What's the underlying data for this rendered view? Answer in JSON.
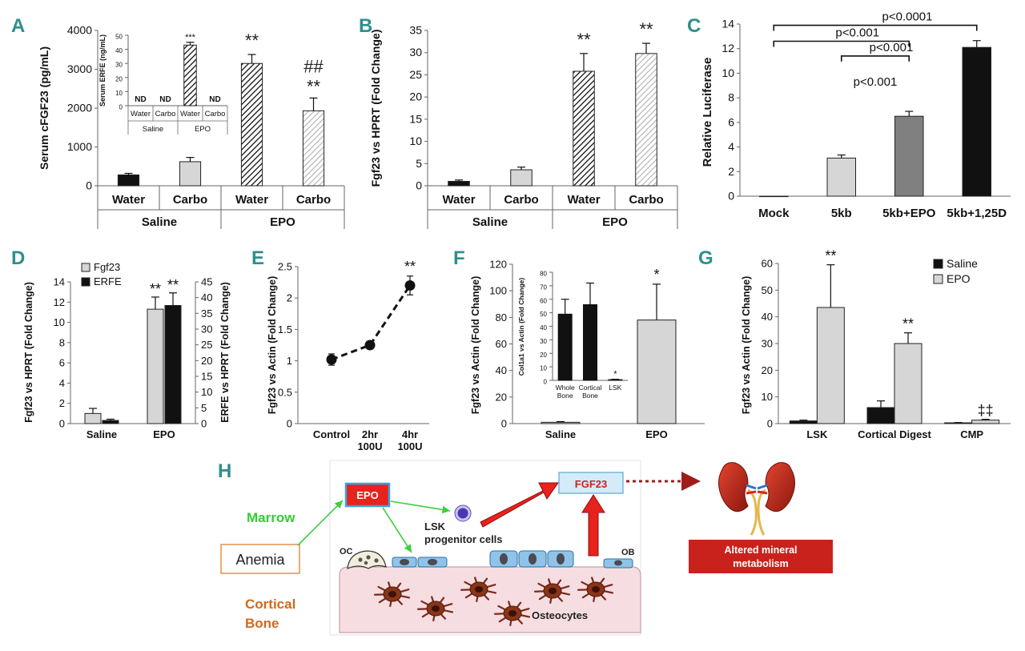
{
  "colors": {
    "letter": "#2e8f8c",
    "black": "#111111",
    "light": "#d6d6d6",
    "mid": "#808080",
    "line": "#666666",
    "sig": "#222222"
  },
  "chart_data": [
    {
      "id": "A",
      "letter": "A",
      "type": "bar",
      "title": "",
      "xlabel": "",
      "ylabel": "Serum cFGF23 (pg/mL)",
      "ylim": [
        0,
        4000
      ],
      "ticks": [
        0,
        1000,
        2000,
        3000,
        4000
      ],
      "categories": [
        "Water",
        "Carbo",
        "Water",
        "Carbo"
      ],
      "groups": [
        {
          "label": "Saline",
          "span": [
            0,
            1
          ]
        },
        {
          "label": "EPO",
          "span": [
            2,
            3
          ]
        }
      ],
      "values": [
        280,
        620,
        3150,
        1930
      ],
      "errors": [
        40,
        110,
        230,
        330
      ],
      "fills": [
        "black",
        "light",
        "hatch-dark",
        "hatch-light"
      ],
      "sig": [
        "",
        "",
        "**",
        "##\n**"
      ],
      "inset": {
        "ylabel": "Serum ERFE (ng/mL)",
        "ylim": [
          0,
          50
        ],
        "ticks": [
          0,
          10,
          20,
          30,
          40,
          50
        ],
        "categories": [
          "Water",
          "Carbo",
          "Water",
          "Carbo"
        ],
        "groups": [
          {
            "label": "Saline",
            "span": [
              0,
              1
            ]
          },
          {
            "label": "EPO",
            "span": [
              2,
              3
            ]
          }
        ],
        "values": [
          null,
          null,
          43,
          null
        ],
        "errors": [
          0,
          0,
          2,
          0
        ],
        "labels": [
          "ND",
          "ND",
          "***",
          "ND"
        ]
      }
    },
    {
      "id": "B",
      "letter": "B",
      "type": "bar",
      "title": "",
      "xlabel": "",
      "ylabel": "Fgf23 vs HPRT (Fold Change)",
      "ylim": [
        0,
        35
      ],
      "ticks": [
        0,
        5,
        10,
        15,
        20,
        25,
        30,
        35
      ],
      "categories": [
        "Water",
        "Carbo",
        "Water",
        "Carbo"
      ],
      "groups": [
        {
          "label": "Saline",
          "span": [
            0,
            1
          ]
        },
        {
          "label": "EPO",
          "span": [
            2,
            3
          ]
        }
      ],
      "values": [
        1.0,
        3.6,
        25.8,
        29.8
      ],
      "errors": [
        0.3,
        0.6,
        4.0,
        2.3
      ],
      "fills": [
        "black",
        "light",
        "hatch-dark",
        "hatch-light"
      ],
      "sig": [
        "",
        "",
        "**",
        "**"
      ]
    },
    {
      "id": "C",
      "letter": "C",
      "type": "bar",
      "title": "",
      "xlabel": "",
      "ylabel": "Relative Luciferase",
      "ylim": [
        0,
        14
      ],
      "ticks": [
        0,
        2,
        4,
        6,
        8,
        10,
        12,
        14
      ],
      "categories": [
        "Mock",
        "5kb",
        "5kb+EPO",
        "5kb+1,25D"
      ],
      "values": [
        0.0,
        3.1,
        6.5,
        12.1
      ],
      "errors": [
        0,
        0.25,
        0.4,
        0.55
      ],
      "fills": [
        "light",
        "light",
        "mid",
        "black"
      ],
      "brackets": [
        {
          "from": 0,
          "to": 3,
          "label": "p<0.0001",
          "level": 13.9
        },
        {
          "from": 0,
          "to": 2,
          "label": "p<0.001",
          "level": 12.6
        },
        {
          "from": 1,
          "to": 2,
          "label": "p<0.001",
          "level": 11.4
        },
        {
          "from": 2,
          "to": 2,
          "label": "p<0.001",
          "level": 9.9
        }
      ]
    },
    {
      "id": "D",
      "letter": "D",
      "type": "bar",
      "title": "",
      "xlabel": "",
      "ylabel": "Fgf23 vs HPRT (Fold Change)",
      "ylabel2": "ERFE vs HPRT (Fold Change)",
      "ylim": [
        0,
        14
      ],
      "ticks": [
        0,
        2,
        4,
        6,
        8,
        10,
        12,
        14
      ],
      "ylim2": [
        0,
        45
      ],
      "ticks2": [
        0,
        5,
        10,
        15,
        20,
        25,
        30,
        35,
        40,
        45
      ],
      "categories": [
        "Saline",
        "EPO"
      ],
      "series": [
        {
          "name": "Fgf23",
          "fill": "light",
          "values": [
            1.0,
            11.3
          ],
          "errors": [
            0.5,
            1.2
          ],
          "axis": "left"
        },
        {
          "name": "ERFE",
          "fill": "black",
          "values": [
            1.0,
            37.5
          ],
          "errors": [
            0.4,
            4.0
          ],
          "axis": "right"
        }
      ],
      "sig": [
        [
          "",
          "**"
        ],
        [
          "",
          "**"
        ]
      ]
    },
    {
      "id": "E",
      "letter": "E",
      "type": "line",
      "title": "",
      "xlabel": "",
      "ylabel": "Fgf23 vs Actin (Fold Change)",
      "ylim": [
        0,
        2.5
      ],
      "ticks": [
        0,
        0.5,
        1,
        1.5,
        2,
        2.5
      ],
      "categories": [
        "Control",
        "2hr\n100U",
        "4hr\n100U"
      ],
      "values": [
        1.02,
        1.25,
        2.2
      ],
      "errors": [
        0.09,
        0.05,
        0.15
      ],
      "sig": [
        "",
        "",
        "**"
      ]
    },
    {
      "id": "F",
      "letter": "F",
      "type": "bar",
      "title": "",
      "xlabel": "",
      "ylabel": "Fgf23 vs Actin (Fold Change)",
      "ylim": [
        0,
        120
      ],
      "ticks": [
        0,
        20,
        40,
        60,
        80,
        100,
        120
      ],
      "categories": [
        "Saline",
        "EPO"
      ],
      "values": [
        1.0,
        78
      ],
      "errors": [
        0.5,
        27
      ],
      "fills": [
        "light",
        "light"
      ],
      "sig": [
        "",
        "*"
      ],
      "inset": {
        "ylabel": "Col1a1 vs Actin (Fold Change)",
        "ylim": [
          0,
          80
        ],
        "ticks": [
          0,
          10,
          20,
          30,
          40,
          50,
          60,
          70,
          80
        ],
        "categories": [
          "Whole\nBone",
          "Cortical\nBone",
          "LSK"
        ],
        "values": [
          49,
          56,
          0.5
        ],
        "errors": [
          11,
          16,
          0.3
        ],
        "labels": [
          "",
          "",
          "*"
        ]
      }
    },
    {
      "id": "G",
      "letter": "G",
      "type": "bar",
      "title": "",
      "xlabel": "",
      "ylabel": "Fgf23 vs Actin (Fold Change)",
      "ylim": [
        0,
        60
      ],
      "ticks": [
        0,
        10,
        20,
        30,
        40,
        50,
        60
      ],
      "categories": [
        "LSK",
        "Cortical Digest",
        "CMP"
      ],
      "series": [
        {
          "name": "Saline",
          "fill": "black",
          "values": [
            1.0,
            6.0,
            0.3
          ],
          "errors": [
            0.3,
            2.5,
            0.1
          ]
        },
        {
          "name": "EPO",
          "fill": "light",
          "values": [
            43.5,
            30,
            1.3
          ],
          "errors": [
            16,
            4,
            0.3
          ]
        }
      ],
      "sig": [
        [
          "",
          "",
          ""
        ],
        [
          "**",
          "**",
          "‡‡"
        ]
      ]
    }
  ],
  "diagram": {
    "letter": "H",
    "marrow": "Marrow",
    "anemia": "Anemia",
    "cortical": "Cortical",
    "bone": "Bone",
    "epo": "EPO",
    "fgf23": "FGF23",
    "lsk1": "LSK",
    "lsk2": "progenitor cells",
    "oc": "OC",
    "ob": "OB",
    "osteocytes": "Osteocytes",
    "outcome1": "Altered mineral",
    "outcome2": "metabolism"
  }
}
